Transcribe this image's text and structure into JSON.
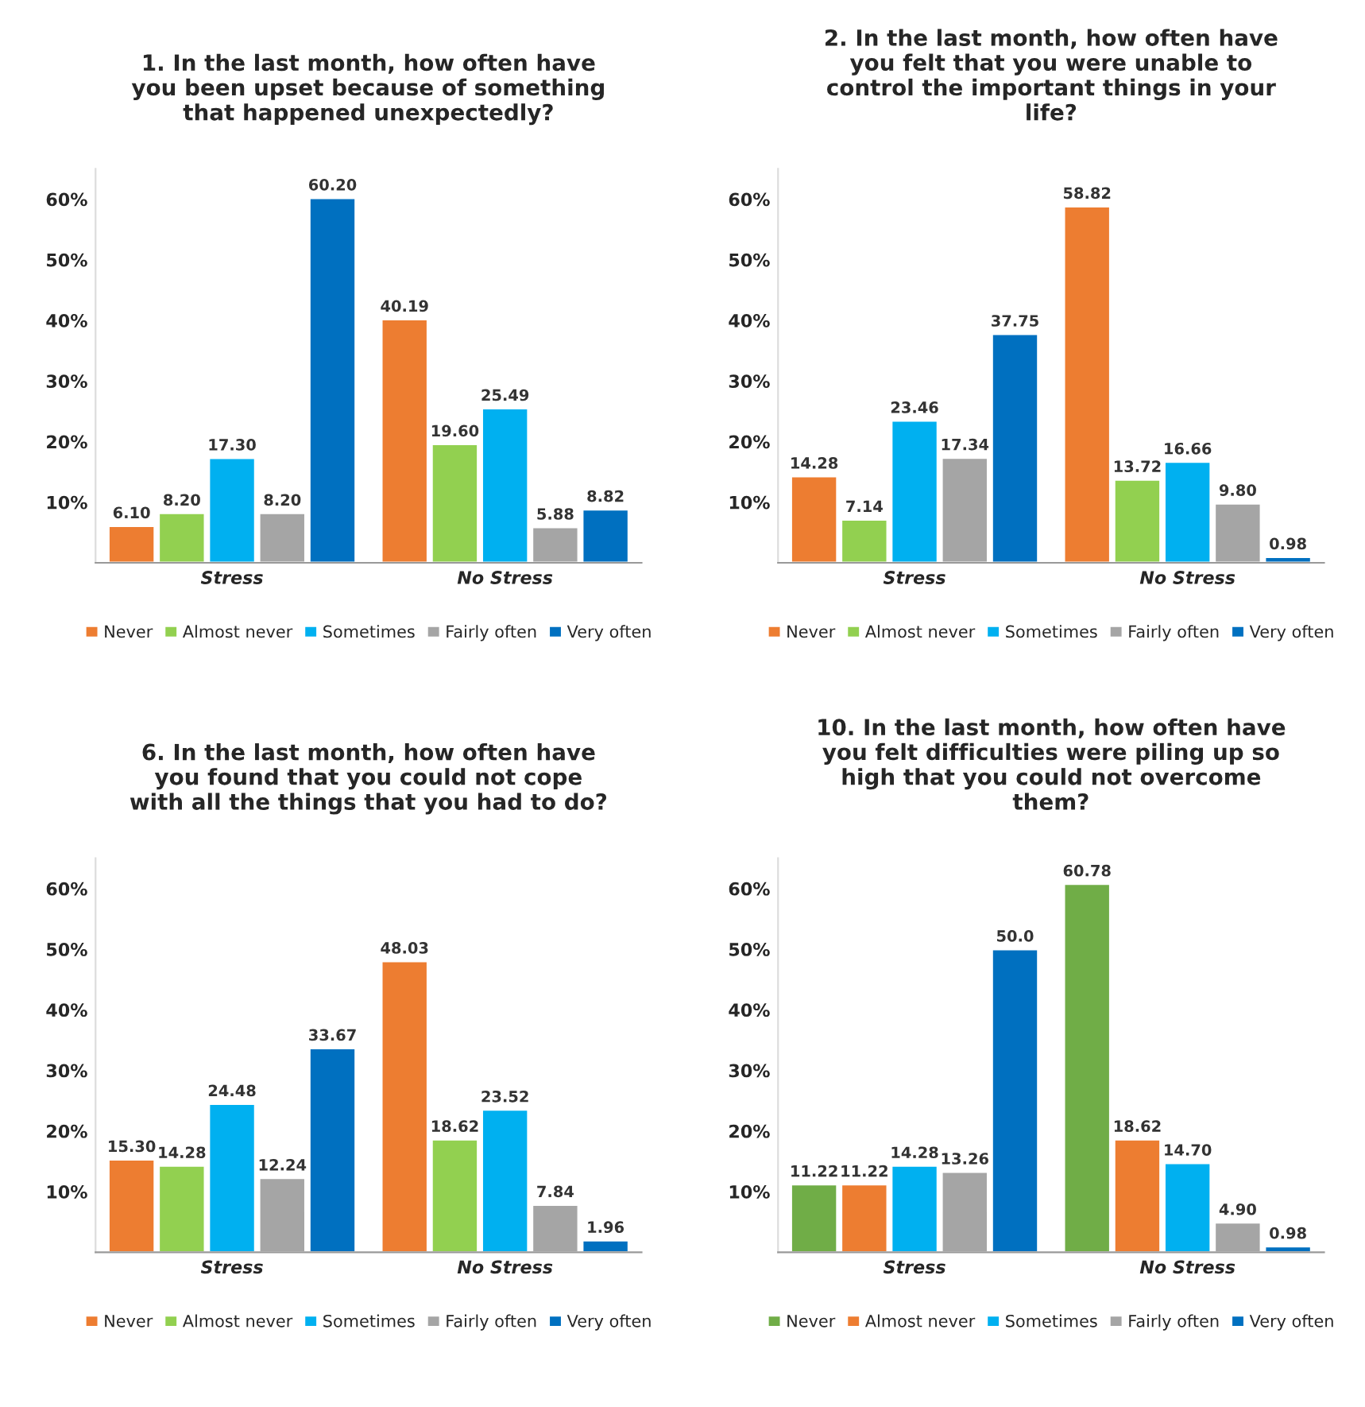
{
  "chart_data": [
    {
      "type": "bar",
      "title": "1. In the last month, how often have you been upset because of something that happened unexpectedly?",
      "categories": [
        "Stress",
        "No Stress"
      ],
      "ylim": [
        0,
        65
      ],
      "yticks": [
        {
          "value": 10,
          "label": "10%"
        },
        {
          "value": 20,
          "label": "20%"
        },
        {
          "value": 30,
          "label": "30%"
        },
        {
          "value": 40,
          "label": "40%"
        },
        {
          "value": 50,
          "label": "50%"
        },
        {
          "value": 60,
          "label": "60%"
        }
      ],
      "grid": false,
      "legend": "bottom",
      "series": [
        {
          "name": "Never",
          "color": "#ed7d31",
          "values": [
            6.1,
            40.19
          ],
          "value_labels": [
            "6.10",
            "40.19"
          ]
        },
        {
          "name": "Almost never",
          "color": "#92d050",
          "values": [
            8.2,
            19.6
          ],
          "value_labels": [
            "8.20",
            "19.60"
          ]
        },
        {
          "name": "Sometimes",
          "color": "#00b0f0",
          "values": [
            17.3,
            25.49
          ],
          "value_labels": [
            "17.30",
            "25.49"
          ]
        },
        {
          "name": "Fairly often",
          "color": "#a5a5a5",
          "values": [
            8.2,
            5.88
          ],
          "value_labels": [
            "8.20",
            "5.88"
          ]
        },
        {
          "name": "Very often",
          "color": "#0070c0",
          "values": [
            60.2,
            8.82
          ],
          "value_labels": [
            "60.20",
            "8.82"
          ]
        }
      ]
    },
    {
      "type": "bar",
      "title": "2. In the last month, how often have you felt that you were unable to control the important things in your life?",
      "categories": [
        "Stress",
        "No Stress"
      ],
      "ylim": [
        0,
        65
      ],
      "yticks": [
        {
          "value": 10,
          "label": "10%"
        },
        {
          "value": 20,
          "label": "20%"
        },
        {
          "value": 30,
          "label": "30%"
        },
        {
          "value": 40,
          "label": "40%"
        },
        {
          "value": 50,
          "label": "50%"
        },
        {
          "value": 60,
          "label": "60%"
        }
      ],
      "grid": false,
      "legend": "bottom",
      "series": [
        {
          "name": "Never",
          "color": "#ed7d31",
          "values": [
            14.28,
            58.82
          ],
          "value_labels": [
            "14.28",
            "58.82"
          ]
        },
        {
          "name": "Almost never",
          "color": "#92d050",
          "values": [
            7.14,
            13.72
          ],
          "value_labels": [
            "7.14",
            "13.72"
          ]
        },
        {
          "name": "Sometimes",
          "color": "#00b0f0",
          "values": [
            23.46,
            16.66
          ],
          "value_labels": [
            "23.46",
            "16.66"
          ]
        },
        {
          "name": "Fairly often",
          "color": "#a5a5a5",
          "values": [
            17.34,
            9.8
          ],
          "value_labels": [
            "17.34",
            "9.80"
          ]
        },
        {
          "name": "Very often",
          "color": "#0070c0",
          "values": [
            37.75,
            0.98
          ],
          "value_labels": [
            "37.75",
            "0.98"
          ]
        }
      ]
    },
    {
      "type": "bar",
      "title": "6. In the last month, how often have you found that you could not cope with all the things that you had to do?",
      "categories": [
        "Stress",
        "No Stress"
      ],
      "ylim": [
        0,
        65
      ],
      "yticks": [
        {
          "value": 10,
          "label": "10%"
        },
        {
          "value": 20,
          "label": "20%"
        },
        {
          "value": 30,
          "label": "30%"
        },
        {
          "value": 40,
          "label": "40%"
        },
        {
          "value": 50,
          "label": "50%"
        },
        {
          "value": 60,
          "label": "60%"
        }
      ],
      "grid": false,
      "legend": "bottom",
      "series": [
        {
          "name": "Never",
          "color": "#ed7d31",
          "values": [
            15.3,
            48.03
          ],
          "value_labels": [
            "15.30",
            "48.03"
          ]
        },
        {
          "name": "Almost never",
          "color": "#92d050",
          "values": [
            14.28,
            18.62
          ],
          "value_labels": [
            "14.28",
            "18.62"
          ]
        },
        {
          "name": "Sometimes",
          "color": "#00b0f0",
          "values": [
            24.48,
            23.52
          ],
          "value_labels": [
            "24.48",
            "23.52"
          ]
        },
        {
          "name": "Fairly often",
          "color": "#a5a5a5",
          "values": [
            12.24,
            7.84
          ],
          "value_labels": [
            "12.24",
            "7.84"
          ]
        },
        {
          "name": "Very often",
          "color": "#0070c0",
          "values": [
            33.67,
            1.96
          ],
          "value_labels": [
            "33.67",
            "1.96"
          ]
        }
      ]
    },
    {
      "type": "bar",
      "title": "10. In the last month, how often have you felt difficulties were piling up so high that you could not overcome them?",
      "categories": [
        "Stress",
        "No Stress"
      ],
      "ylim": [
        0,
        65
      ],
      "yticks": [
        {
          "value": 10,
          "label": "10%"
        },
        {
          "value": 20,
          "label": "20%"
        },
        {
          "value": 30,
          "label": "30%"
        },
        {
          "value": 40,
          "label": "40%"
        },
        {
          "value": 50,
          "label": "50%"
        },
        {
          "value": 60,
          "label": "60%"
        }
      ],
      "grid": false,
      "legend": "bottom",
      "series": [
        {
          "name": "Never",
          "color": "#70ad47",
          "values": [
            11.22,
            60.78
          ],
          "value_labels": [
            "11.22",
            "60.78"
          ]
        },
        {
          "name": "Almost never",
          "color": "#ed7d31",
          "values": [
            11.22,
            18.62
          ],
          "value_labels": [
            "11.22",
            "18.62"
          ]
        },
        {
          "name": "Sometimes",
          "color": "#00b0f0",
          "values": [
            14.28,
            14.7
          ],
          "value_labels": [
            "14.28",
            "14.70"
          ]
        },
        {
          "name": "Fairly often",
          "color": "#a5a5a5",
          "values": [
            13.26,
            4.9
          ],
          "value_labels": [
            "13.26",
            "4.90"
          ]
        },
        {
          "name": "Very often",
          "color": "#0070c0",
          "values": [
            50.0,
            0.98
          ],
          "value_labels": [
            "50.0",
            "0.98"
          ]
        }
      ]
    }
  ]
}
